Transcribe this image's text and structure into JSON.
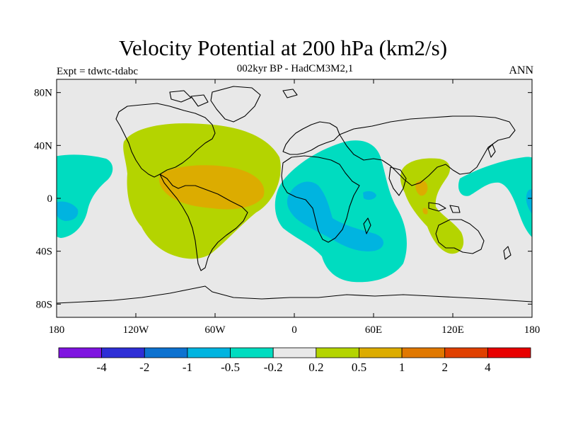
{
  "header": {
    "title": "Velocity Potential at 200 hPa (km2/s)",
    "subtitle": "002kyr BP - HadCM3M2,1",
    "left_label": "Expt = tdwtc-tdabc",
    "right_label": "ANN"
  },
  "map": {
    "projection": "cylindrical-equidistant",
    "lon_range": [
      -180,
      180
    ],
    "lat_range": [
      -90,
      90
    ],
    "background_color": "#e8e8e8",
    "y_ticks": [
      {
        "lat": 80,
        "label": "80N"
      },
      {
        "lat": 40,
        "label": "40N"
      },
      {
        "lat": 0,
        "label": "0"
      },
      {
        "lat": -40,
        "label": "40S"
      },
      {
        "lat": -80,
        "label": "80S"
      }
    ],
    "x_ticks": [
      {
        "lon": -180,
        "label": "180"
      },
      {
        "lon": -120,
        "label": "120W"
      },
      {
        "lon": -60,
        "label": "60W"
      },
      {
        "lon": 0,
        "label": "0"
      },
      {
        "lon": 60,
        "label": "60E"
      },
      {
        "lon": 120,
        "label": "120E"
      },
      {
        "lon": 180,
        "label": "180"
      }
    ]
  },
  "colorbar": {
    "colors": [
      "#7f14e0",
      "#2e2ed6",
      "#0d72d0",
      "#00b4e0",
      "#00dcc0",
      "#e8e8e8",
      "#b4d400",
      "#dcac00",
      "#e07800",
      "#e04000",
      "#e80000"
    ],
    "labels": [
      "-4",
      "-2",
      "-1",
      "-0.5",
      "-0.2",
      "0.2",
      "0.5",
      "1",
      "2",
      "4"
    ]
  }
}
